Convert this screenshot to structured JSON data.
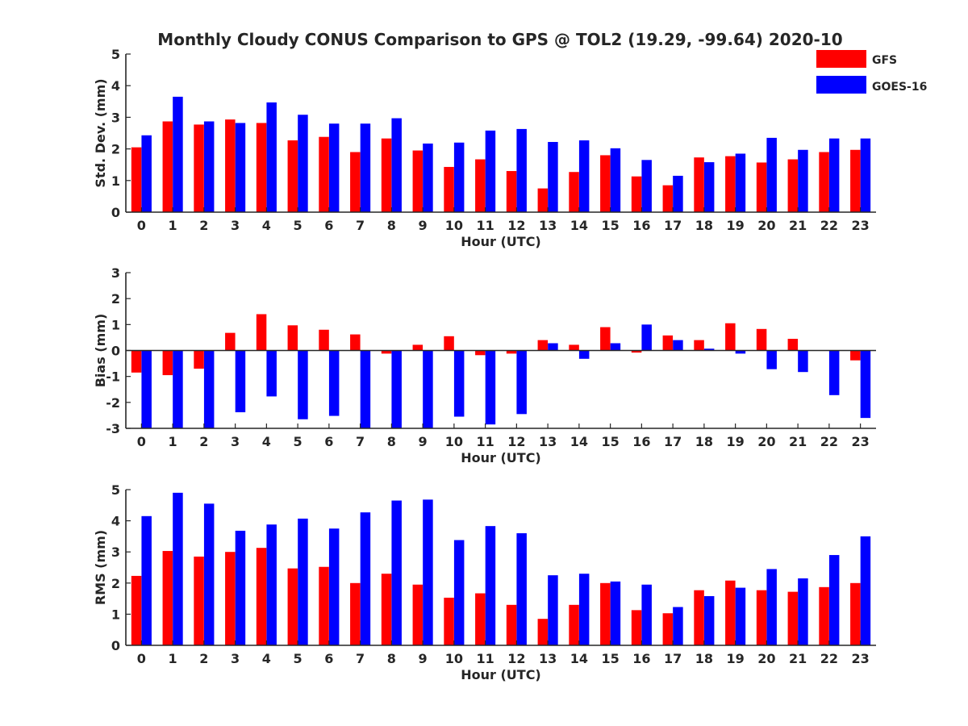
{
  "chart_data": {
    "type": "bar",
    "title": "Monthly Cloudy CONUS Comparison to GPS @ TOL2 (19.29, -99.64) 2020-10",
    "legend": {
      "placement": "top-right",
      "entries": [
        {
          "name": "GFS",
          "color": "#ff0000"
        },
        {
          "name": "GOES-16",
          "color": "#0000ff"
        }
      ]
    },
    "panels": [
      {
        "type": "bar",
        "xlabel": "Hour (UTC)",
        "ylabel": "Std. Dev. (mm)",
        "ylim": [
          0,
          5
        ],
        "yticks": [
          "0",
          "1",
          "2",
          "3",
          "4",
          "5"
        ],
        "categories": [
          "0",
          "1",
          "2",
          "3",
          "4",
          "5",
          "6",
          "7",
          "8",
          "9",
          "10",
          "11",
          "12",
          "13",
          "14",
          "15",
          "16",
          "17",
          "18",
          "19",
          "20",
          "21",
          "22",
          "23"
        ],
        "series": [
          {
            "name": "GFS",
            "color": "#ff0000",
            "values": [
              2.05,
              2.87,
              2.77,
              2.93,
              2.82,
              2.27,
              2.38,
              1.9,
              2.33,
              1.95,
              1.43,
              1.67,
              1.3,
              0.75,
              1.27,
              1.8,
              1.13,
              0.85,
              1.73,
              1.77,
              1.57,
              1.67,
              1.9,
              1.97
            ]
          },
          {
            "name": "GOES-16",
            "color": "#0000ff",
            "values": [
              2.43,
              3.65,
              2.87,
              2.82,
              3.47,
              3.08,
              2.8,
              2.8,
              2.97,
              2.17,
              2.2,
              2.58,
              2.63,
              2.22,
              2.27,
              2.02,
              1.65,
              1.15,
              1.58,
              1.85,
              2.35,
              1.97,
              2.33,
              2.33
            ]
          }
        ]
      },
      {
        "type": "bar",
        "xlabel": "Hour (UTC)",
        "ylabel": "Bias (mm)",
        "ylim": [
          -3,
          3
        ],
        "yticks": [
          "-3",
          "-2",
          "-1",
          "0",
          "1",
          "2",
          "3"
        ],
        "categories": [
          "0",
          "1",
          "2",
          "3",
          "4",
          "5",
          "6",
          "7",
          "8",
          "9",
          "10",
          "11",
          "12",
          "13",
          "14",
          "15",
          "16",
          "17",
          "18",
          "19",
          "20",
          "21",
          "22",
          "23"
        ],
        "series": [
          {
            "name": "GFS",
            "color": "#ff0000",
            "values": [
              -0.85,
              -0.95,
              -0.7,
              0.68,
              1.4,
              0.97,
              0.8,
              0.62,
              -0.12,
              0.22,
              0.55,
              -0.18,
              -0.12,
              0.4,
              0.22,
              0.9,
              -0.08,
              0.58,
              0.4,
              1.05,
              0.83,
              0.45,
              0.0,
              -0.38
            ]
          },
          {
            "name": "GOES-16",
            "color": "#0000ff",
            "values": [
              -3.0,
              -3.0,
              -3.0,
              -2.38,
              -1.77,
              -2.65,
              -2.52,
              -3.0,
              -3.0,
              -3.0,
              -2.55,
              -2.85,
              -2.45,
              0.28,
              -0.32,
              0.28,
              1.0,
              0.4,
              0.07,
              -0.12,
              -0.72,
              -0.83,
              -1.72,
              -2.6
            ]
          }
        ]
      },
      {
        "type": "bar",
        "xlabel": "Hour (UTC)",
        "ylabel": "RMS (mm)",
        "ylim": [
          0,
          5
        ],
        "yticks": [
          "0",
          "1",
          "2",
          "3",
          "4",
          "5"
        ],
        "categories": [
          "0",
          "1",
          "2",
          "3",
          "4",
          "5",
          "6",
          "7",
          "8",
          "9",
          "10",
          "11",
          "12",
          "13",
          "14",
          "15",
          "16",
          "17",
          "18",
          "19",
          "20",
          "21",
          "22",
          "23"
        ],
        "series": [
          {
            "name": "GFS",
            "color": "#ff0000",
            "values": [
              2.23,
              3.03,
              2.85,
              3.0,
              3.13,
              2.47,
              2.52,
              2.0,
              2.3,
              1.95,
              1.53,
              1.67,
              1.3,
              0.85,
              1.3,
              2.0,
              1.13,
              1.03,
              1.77,
              2.08,
              1.77,
              1.72,
              1.87,
              2.0
            ]
          },
          {
            "name": "GOES-16",
            "color": "#0000ff",
            "values": [
              4.15,
              4.9,
              4.55,
              3.68,
              3.88,
              4.07,
              3.75,
              4.27,
              4.65,
              4.68,
              3.38,
              3.83,
              3.6,
              2.25,
              2.3,
              2.05,
              1.95,
              1.23,
              1.58,
              1.85,
              2.45,
              2.15,
              2.9,
              3.5
            ]
          }
        ]
      }
    ]
  }
}
